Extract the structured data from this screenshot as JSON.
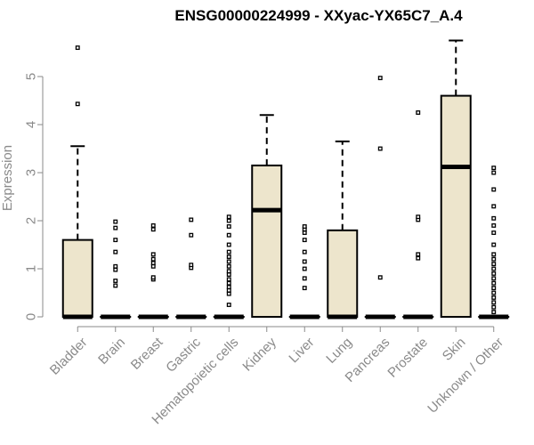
{
  "chart_data": {
    "type": "boxplot",
    "title": "ENSG00000224999 - XXyac-YX65C7_A.4",
    "xlabel": "",
    "ylabel": "Expression",
    "ylim": [
      0,
      5.9
    ],
    "yticks": [
      0,
      1,
      2,
      3,
      4,
      5
    ],
    "grid": false,
    "legend": "none",
    "colors": {
      "box_fill": "#ede5cc",
      "stroke": "#000000",
      "axis_text": "#8a8a8a"
    },
    "categories": [
      "Bladder",
      "Brain",
      "Breast",
      "Gastric",
      "Hematopoietic cells",
      "Kidney",
      "Liver",
      "Lung",
      "Pancreas",
      "Prostate",
      "Skin",
      "Unknown / Other"
    ],
    "boxes": [
      {
        "name": "Bladder",
        "q1": 0,
        "median": 0,
        "q3": 1.6,
        "whisker_low": 0,
        "whisker_high": 3.55,
        "outliers": [
          4.43,
          5.6
        ]
      },
      {
        "name": "Brain",
        "q1": 0,
        "median": 0,
        "q3": 0,
        "whisker_low": 0,
        "whisker_high": 0,
        "outliers": [
          0.65,
          0.75,
          0.98,
          1.05,
          1.35,
          1.6,
          1.85,
          1.98
        ]
      },
      {
        "name": "Breast",
        "q1": 0,
        "median": 0,
        "q3": 0,
        "whisker_low": 0,
        "whisker_high": 0,
        "outliers": [
          0.78,
          0.82,
          1.05,
          1.12,
          1.2,
          1.3,
          1.82,
          1.9
        ]
      },
      {
        "name": "Gastric",
        "q1": 0,
        "median": 0,
        "q3": 0,
        "whisker_low": 0,
        "whisker_high": 0,
        "outliers": [
          1.02,
          1.08,
          1.7,
          2.02
        ]
      },
      {
        "name": "Hematopoietic cells",
        "q1": 0,
        "median": 0,
        "q3": 0,
        "whisker_low": 0,
        "whisker_high": 0,
        "outliers": [
          0.25,
          0.48,
          0.55,
          0.62,
          0.7,
          0.78,
          0.88,
          0.95,
          1.05,
          1.15,
          1.25,
          1.35,
          1.5,
          1.7,
          1.88,
          2.0,
          2.08
        ]
      },
      {
        "name": "Kidney",
        "q1": 0,
        "median": 2.22,
        "q3": 3.15,
        "whisker_low": 0,
        "whisker_high": 4.2,
        "outliers": []
      },
      {
        "name": "Liver",
        "q1": 0,
        "median": 0,
        "q3": 0,
        "whisker_low": 0,
        "whisker_high": 0,
        "outliers": [
          0.6,
          0.8,
          1.0,
          1.15,
          1.35,
          1.6,
          1.75,
          1.82,
          1.88
        ]
      },
      {
        "name": "Lung",
        "q1": 0,
        "median": 0,
        "q3": 1.8,
        "whisker_low": 0,
        "whisker_high": 3.65,
        "outliers": []
      },
      {
        "name": "Pancreas",
        "q1": 0,
        "median": 0,
        "q3": 0,
        "whisker_low": 0,
        "whisker_high": 0,
        "outliers": [
          0.82,
          3.5,
          4.97
        ]
      },
      {
        "name": "Prostate",
        "q1": 0,
        "median": 0,
        "q3": 0,
        "whisker_low": 0,
        "whisker_high": 0,
        "outliers": [
          1.22,
          1.3,
          2.02,
          2.08,
          4.25
        ]
      },
      {
        "name": "Skin",
        "q1": 0,
        "median": 3.12,
        "q3": 4.6,
        "whisker_low": 0,
        "whisker_high": 5.75,
        "outliers": []
      },
      {
        "name": "Unknown / Other",
        "q1": 0,
        "median": 0,
        "q3": 0,
        "whisker_low": 0,
        "whisker_high": 0,
        "outliers": [
          0.1,
          0.2,
          0.3,
          0.4,
          0.5,
          0.6,
          0.7,
          0.8,
          0.9,
          1.0,
          1.1,
          1.2,
          1.3,
          1.5,
          1.75,
          1.9,
          2.05,
          2.3,
          2.65,
          3.0,
          3.1
        ]
      }
    ]
  }
}
